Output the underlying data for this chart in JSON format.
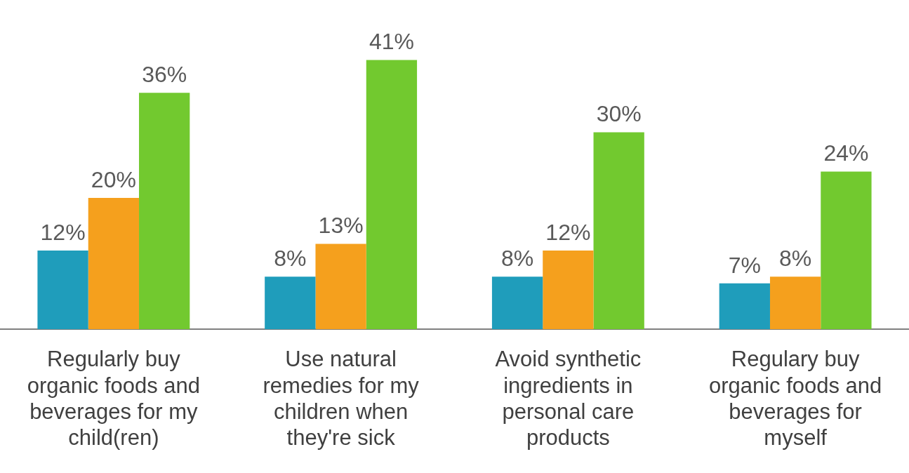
{
  "chart_data": {
    "type": "bar",
    "categories": [
      "Regularly buy organic foods and beverages for my child(ren)",
      "Use natural remedies for my children when they're sick",
      "Avoid synthetic ingredients in personal care products",
      "Regulary buy organic foods and beverages for myself"
    ],
    "series": [
      {
        "color": "#1f9dbb",
        "values": [
          12,
          8,
          8,
          7
        ],
        "value_labels": [
          "12%",
          "8%",
          "8%",
          "7%"
        ]
      },
      {
        "color": "#f5a01d",
        "values": [
          20,
          13,
          12,
          8
        ],
        "value_labels": [
          "20%",
          "13%",
          "12%",
          "8%"
        ]
      },
      {
        "color": "#72c92f",
        "values": [
          36,
          41,
          30,
          24
        ],
        "value_labels": [
          "36%",
          "41%",
          "30%",
          "24%"
        ]
      }
    ],
    "grid": false,
    "legend": false,
    "tick_labels": "x"
  }
}
